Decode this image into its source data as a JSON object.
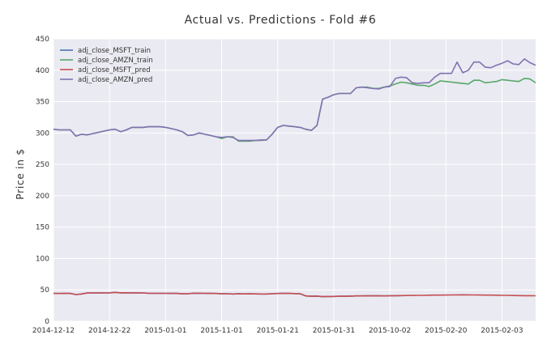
{
  "chart_data": {
    "type": "line",
    "title": "Actual vs. Predictions - Fold #6",
    "xlabel": "",
    "ylabel": "Price in $",
    "ylim": [
      0,
      450
    ],
    "yticks": [
      0,
      50,
      100,
      150,
      200,
      250,
      300,
      350,
      400,
      450
    ],
    "grid": true,
    "legend_position": "top-left",
    "x_tick_labels": [
      "2014-12-12",
      "2014-12-22",
      "2015-01-01",
      "2015-11-01",
      "2015-01-21",
      "2015-01-31",
      "2015-10-02",
      "2015-02-20",
      "2015-02-03"
    ],
    "x_tick_index": [
      0,
      10,
      20,
      30,
      40,
      50,
      60,
      70,
      80
    ],
    "x_index_range": [
      0,
      86
    ],
    "series": [
      {
        "name": "adj_close_MSFT_train",
        "color": "#4c72b0",
        "x_index": [
          0,
          1,
          2,
          3,
          4,
          5,
          6,
          7,
          8,
          9,
          10,
          11,
          12,
          13,
          14,
          15,
          16,
          17,
          18,
          19,
          20,
          21,
          22,
          23,
          24,
          25,
          26,
          27,
          28,
          29,
          30,
          31,
          32,
          33,
          34,
          35,
          36,
          37,
          38,
          39,
          40,
          41,
          42,
          43,
          44,
          45,
          46,
          47,
          48,
          49,
          50,
          51,
          52,
          53,
          54,
          55,
          56,
          57,
          58,
          59,
          60,
          61,
          62
        ],
        "values": [
          44.5,
          44.2,
          44.3,
          44.4,
          42.5,
          43.5,
          45.0,
          45.1,
          45.2,
          45.1,
          45.2,
          46.0,
          45.3,
          45.4,
          45.2,
          45.3,
          45.1,
          44.6,
          44.5,
          44.5,
          44.5,
          44.4,
          44.3,
          43.7,
          43.8,
          44.8,
          44.6,
          44.5,
          44.3,
          44.2,
          44.0,
          43.8,
          43.5,
          43.7,
          43.6,
          43.7,
          43.6,
          43.5,
          43.4,
          43.8,
          44.2,
          44.5,
          44.3,
          44.1,
          43.8,
          40.3,
          39.9,
          40.1,
          39.2,
          39.5,
          39.6,
          39.8,
          39.9,
          40.1,
          40.3,
          40.4,
          40.5,
          40.6,
          40.5,
          40.4,
          40.6,
          40.8,
          40.9
        ]
      },
      {
        "name": "adj_close_AMZN_train",
        "color": "#55a868",
        "x_index": [
          0,
          1,
          2,
          3,
          4,
          5,
          6,
          7,
          8,
          9,
          10,
          11,
          12,
          13,
          14,
          15,
          16,
          17,
          18,
          19,
          20,
          21,
          22,
          23,
          24,
          25,
          26,
          27,
          28,
          29,
          30,
          31,
          32,
          33,
          34,
          35,
          36,
          37,
          38,
          39,
          40,
          41,
          42,
          43,
          44,
          45,
          46,
          47,
          48,
          49,
          50,
          51,
          52,
          53,
          54,
          55,
          56,
          57,
          58,
          59,
          60,
          61,
          62,
          63,
          64,
          65,
          66,
          67,
          68,
          69,
          70,
          71,
          72,
          73,
          74,
          75,
          76,
          77,
          78,
          79,
          80,
          81,
          82,
          83,
          84,
          85,
          86
        ],
        "values": [
          306,
          305,
          305,
          305,
          295,
          298,
          297,
          299,
          301,
          303,
          305,
          306,
          302,
          305,
          309,
          309,
          309,
          310,
          310,
          310,
          309,
          307,
          305,
          302,
          296,
          297,
          300,
          298,
          296,
          294,
          291,
          294,
          294,
          287,
          287,
          287,
          288,
          288,
          289,
          298,
          309,
          312,
          311,
          310,
          309,
          306,
          304,
          312,
          354,
          357,
          361,
          363,
          363,
          363,
          372,
          373,
          373,
          371,
          371,
          373,
          375,
          378,
          381,
          380,
          378,
          376,
          376,
          374,
          378,
          383,
          382,
          381,
          380,
          379,
          378,
          384,
          384,
          380,
          381,
          382,
          385,
          384,
          383,
          382,
          387,
          386,
          380
        ]
      },
      {
        "name": "adj_close_MSFT_pred",
        "color": "#c44e52",
        "x_index": [
          0,
          1,
          2,
          3,
          4,
          5,
          6,
          7,
          8,
          9,
          10,
          11,
          12,
          13,
          14,
          15,
          16,
          17,
          18,
          19,
          20,
          21,
          22,
          23,
          24,
          25,
          26,
          27,
          28,
          29,
          30,
          31,
          32,
          33,
          34,
          35,
          36,
          37,
          38,
          39,
          40,
          41,
          42,
          43,
          44,
          45,
          46,
          47,
          48,
          49,
          50,
          51,
          52,
          53,
          54,
          55,
          56,
          57,
          58,
          59,
          60,
          61,
          62,
          63,
          64,
          65,
          66,
          67,
          68,
          69,
          70,
          71,
          72,
          73,
          74,
          75,
          76,
          77,
          78,
          79,
          80,
          81,
          82,
          83,
          84,
          85,
          86
        ],
        "values": [
          44.5,
          44.2,
          44.3,
          44.4,
          42.5,
          43.5,
          45.0,
          45.1,
          45.2,
          45.1,
          45.2,
          46.0,
          45.3,
          45.4,
          45.2,
          45.3,
          45.1,
          44.6,
          44.5,
          44.5,
          44.5,
          44.4,
          44.3,
          43.7,
          43.8,
          44.8,
          44.6,
          44.5,
          44.3,
          44.2,
          44.0,
          43.8,
          43.5,
          43.7,
          43.6,
          43.7,
          43.6,
          43.5,
          43.4,
          43.8,
          44.2,
          44.5,
          44.3,
          44.1,
          43.8,
          40.3,
          39.9,
          40.1,
          39.2,
          39.5,
          39.6,
          39.8,
          39.9,
          40.1,
          40.3,
          40.4,
          40.5,
          40.6,
          40.5,
          40.4,
          40.6,
          40.8,
          40.9,
          41.0,
          41.1,
          41.2,
          41.3,
          41.5,
          41.6,
          41.7,
          41.8,
          41.9,
          42.0,
          42.1,
          42.0,
          41.9,
          41.8,
          41.7,
          41.6,
          41.5,
          41.3,
          41.2,
          41.0,
          40.9,
          40.8,
          40.7,
          40.6
        ]
      },
      {
        "name": "adj_close_AMZN_pred",
        "color": "#8172b2",
        "x_index": [
          0,
          1,
          2,
          3,
          4,
          5,
          6,
          7,
          8,
          9,
          10,
          11,
          12,
          13,
          14,
          15,
          16,
          17,
          18,
          19,
          20,
          21,
          22,
          23,
          24,
          25,
          26,
          27,
          28,
          29,
          30,
          31,
          32,
          33,
          34,
          35,
          36,
          37,
          38,
          39,
          40,
          41,
          42,
          43,
          44,
          45,
          46,
          47,
          48,
          49,
          50,
          51,
          52,
          53,
          54,
          55,
          56,
          57,
          58,
          59,
          60,
          61,
          62,
          63,
          64,
          65,
          66,
          67,
          68,
          69,
          70,
          71,
          72,
          73,
          74,
          75,
          76,
          77,
          78,
          79,
          80,
          81,
          82,
          83,
          84,
          85,
          86
        ],
        "values": [
          306,
          305,
          305,
          305,
          295,
          298,
          297,
          299,
          301,
          303,
          305,
          306,
          302,
          305,
          309,
          309,
          309,
          310,
          310,
          310,
          309,
          307,
          305,
          302,
          296,
          297,
          300,
          298,
          296,
          294,
          293,
          294,
          293,
          288,
          288,
          288,
          288,
          289,
          289,
          298,
          309,
          312,
          311,
          310,
          309,
          306,
          304,
          312,
          354,
          357,
          361,
          363,
          363,
          363,
          372,
          373,
          372,
          371,
          370,
          373,
          374,
          387,
          389,
          388,
          380,
          379,
          380,
          380,
          389,
          395,
          395,
          395,
          413,
          396,
          400,
          413,
          413,
          405,
          404,
          408,
          411,
          415,
          410,
          409,
          418,
          412,
          408
        ]
      }
    ]
  }
}
